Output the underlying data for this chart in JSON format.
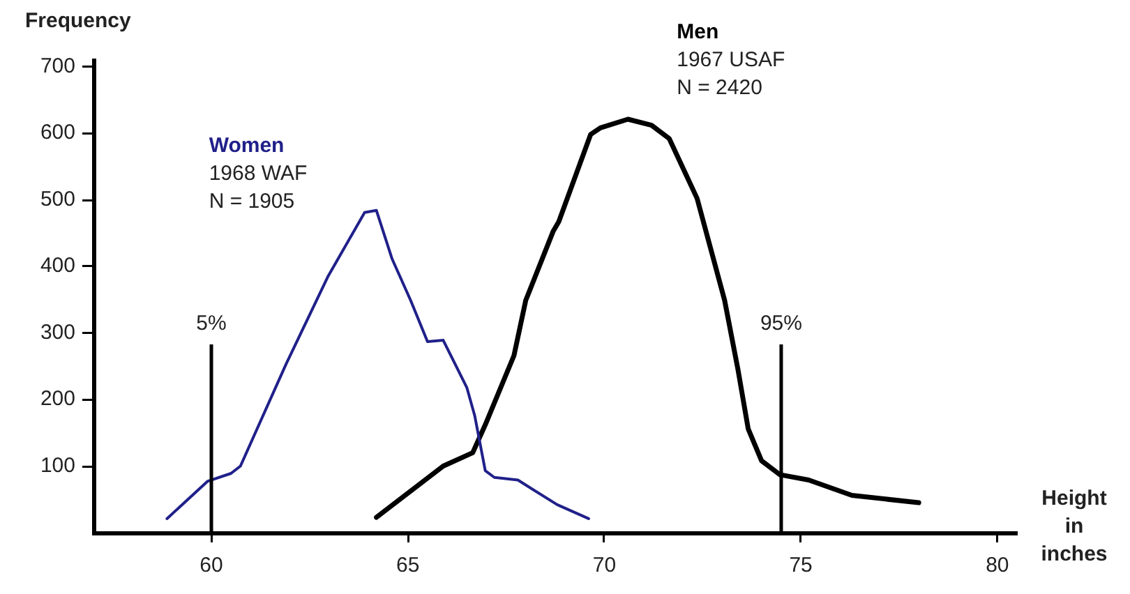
{
  "chart_data": {
    "type": "line",
    "ylabel": "Frequency",
    "xlabel": "Height\nin\ninches",
    "xlim": [
      57,
      80.5
    ],
    "xticks": [
      60,
      65,
      70,
      75,
      80
    ],
    "ylim": [
      0,
      710
    ],
    "yticks": [
      100,
      200,
      300,
      400,
      500,
      600,
      700
    ],
    "grid": false,
    "legend": false,
    "marker": "none",
    "line_style": "solid",
    "series": [
      {
        "name": "Women",
        "color": "#20208a",
        "x": [
          58.87,
          59.9,
          60.5,
          60.74,
          61.9,
          62.96,
          63.9,
          64.2,
          64.6,
          65.07,
          65.5,
          65.9,
          66.5,
          66.7,
          66.97,
          67.2,
          67.8,
          68.8,
          69.6
        ],
        "values": [
          21,
          77,
          89,
          100,
          253,
          384,
          481,
          484,
          411,
          349,
          287,
          289,
          218,
          176,
          93,
          83,
          79,
          42,
          21
        ]
      },
      {
        "name": "Men",
        "color": "#000000",
        "x": [
          64.2,
          65.9,
          66.65,
          66.97,
          67.7,
          68.0,
          68.7,
          68.84,
          69.65,
          69.9,
          70.6,
          71.2,
          71.65,
          72.36,
          73.06,
          73.4,
          73.66,
          74.0,
          74.47,
          75.2,
          76.3,
          78.0
        ],
        "values": [
          23,
          100,
          120,
          162,
          266,
          349,
          453,
          467,
          598,
          608,
          621,
          612,
          592,
          502,
          349,
          245,
          156,
          108,
          87,
          79,
          56,
          45
        ]
      }
    ],
    "annotations": [
      "1968 WAF\nN = 1905",
      "1967 USAF\nN = 2420",
      "5%",
      "95%"
    ],
    "ref_lines": [
      {
        "axis": "x",
        "value": 60,
        "color": "#000000"
      },
      {
        "axis": "x",
        "value": 74.5,
        "color": "#000000"
      }
    ]
  }
}
